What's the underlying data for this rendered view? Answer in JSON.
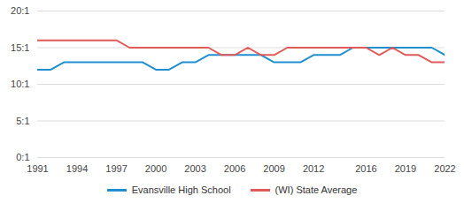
{
  "chart_data": {
    "type": "line",
    "x": [
      1991,
      1992,
      1993,
      1994,
      1995,
      1996,
      1997,
      1998,
      1999,
      2000,
      2001,
      2002,
      2003,
      2004,
      2005,
      2006,
      2007,
      2008,
      2009,
      2010,
      2011,
      2012,
      2013,
      2014,
      2015,
      2016,
      2017,
      2018,
      2019,
      2020,
      2021,
      2022
    ],
    "series": [
      {
        "name": "Evansville High School",
        "color": "#1f8fcf",
        "values": [
          12,
          12,
          13,
          13,
          13,
          13,
          13,
          13,
          13,
          12,
          12,
          13,
          13,
          14,
          14,
          14,
          14,
          14,
          13,
          13,
          13,
          14,
          14,
          14,
          15,
          15,
          15,
          15,
          15,
          15,
          15,
          14
        ]
      },
      {
        "name": "(WI) State Average",
        "color": "#e05a5a",
        "values": [
          16,
          16,
          16,
          16,
          16,
          16,
          16,
          15,
          15,
          15,
          15,
          15,
          15,
          15,
          14,
          14,
          15,
          14,
          14,
          15,
          15,
          15,
          15,
          15,
          15,
          15,
          14,
          15,
          14,
          14,
          13,
          13
        ]
      }
    ],
    "xlim": [
      1991,
      2022
    ],
    "xticks": [
      1991,
      1994,
      1997,
      2000,
      2003,
      2006,
      2009,
      2012,
      2016,
      2019,
      2022
    ],
    "ylim": [
      0,
      20
    ],
    "yticks": [
      {
        "value": 0,
        "label": "0:1"
      },
      {
        "value": 5,
        "label": "5:1"
      },
      {
        "value": 10,
        "label": "10:1"
      },
      {
        "value": 15,
        "label": "15:1"
      },
      {
        "value": 20,
        "label": "20:1"
      }
    ],
    "grid": true,
    "legend": "bottom"
  }
}
